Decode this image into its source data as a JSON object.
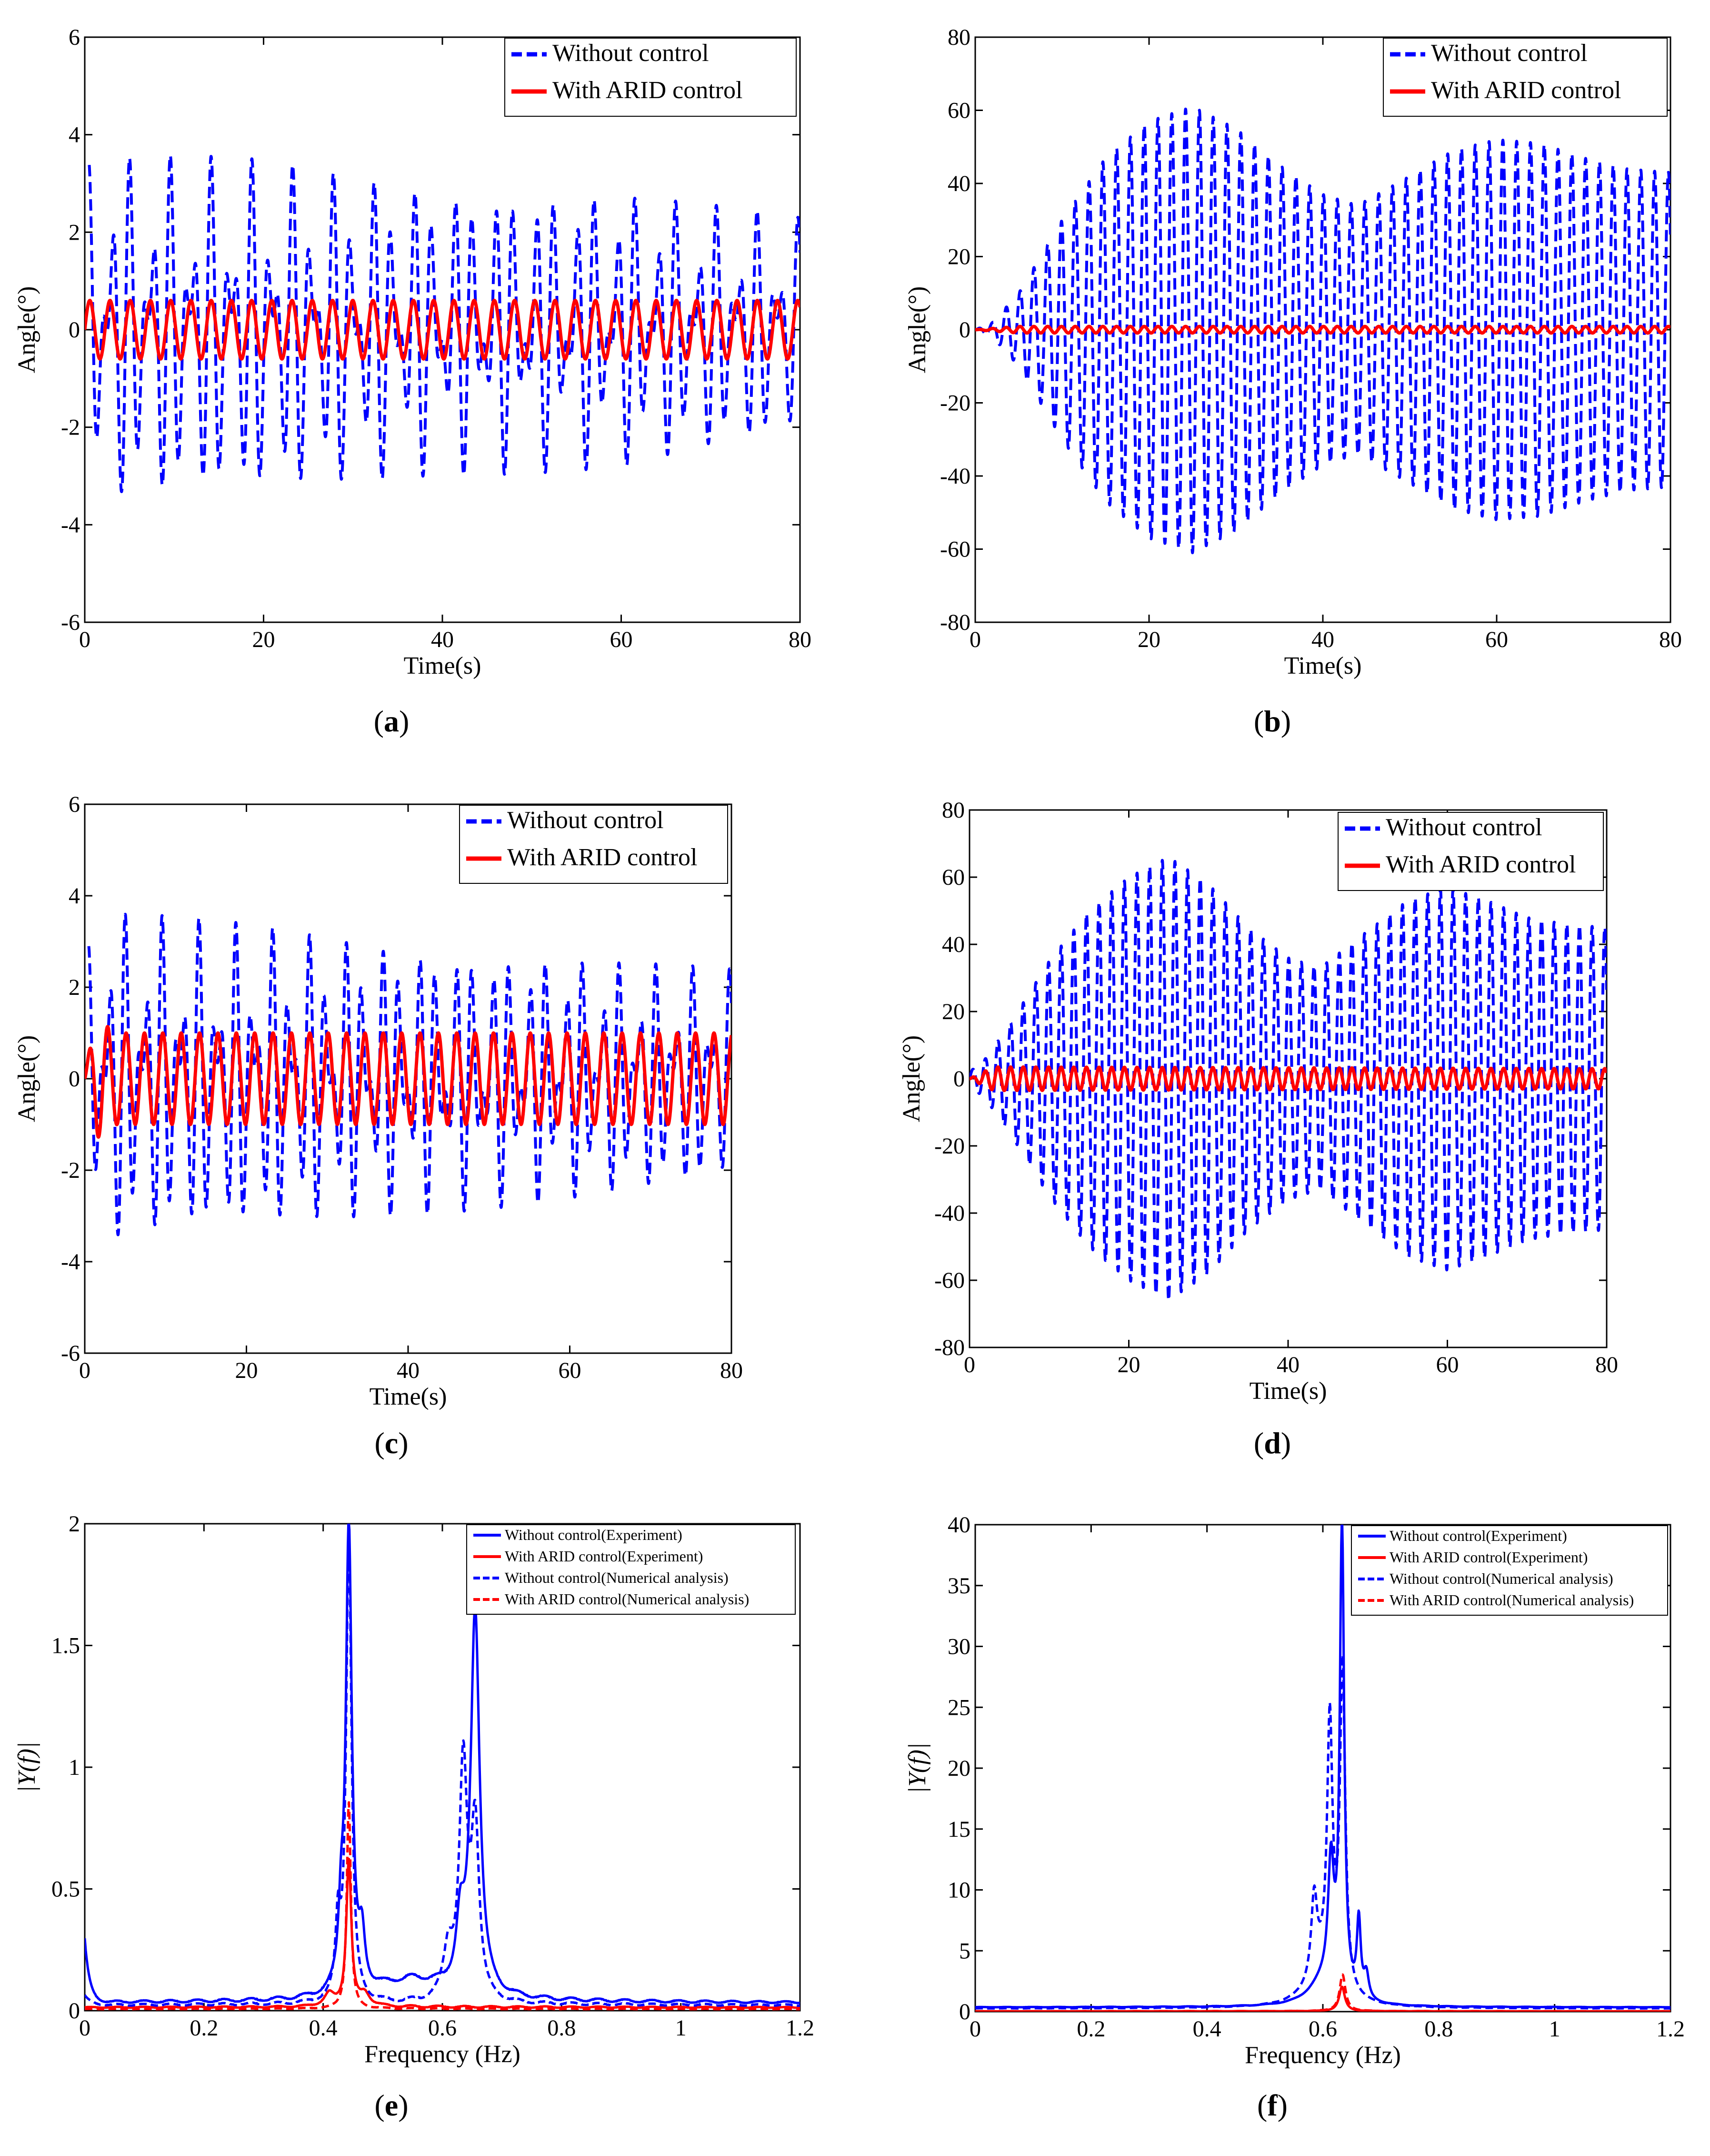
{
  "chart_data": [
    {
      "id": "a",
      "type": "line",
      "caption": "a",
      "xlabel": "Time(s)",
      "ylabel": "Angle(°)",
      "xlim": [
        0,
        80
      ],
      "ylim": [
        -6,
        6
      ],
      "xticks": [
        0,
        20,
        40,
        60,
        80
      ],
      "yticks": [
        -6,
        -4,
        -2,
        0,
        2,
        4,
        6
      ],
      "series": [
        {
          "name": "Without control",
          "color": "#0000ff",
          "style": "dashed",
          "kind": "sum",
          "envelope": [
            [
              0,
              3.6
            ],
            [
              10,
              3.6
            ],
            [
              20,
              3.5
            ],
            [
              40,
              3.0
            ],
            [
              60,
              2.9
            ],
            [
              80,
              2.3
            ]
          ],
          "components": [
            {
              "freq": 0.442,
              "amp": 0.55
            },
            {
              "freq": 0.655,
              "amp": 0.45
            }
          ],
          "start": 0.5,
          "end": 80
        },
        {
          "name": "With ARID control",
          "color": "#ff0000",
          "style": "solid",
          "kind": "sine",
          "envelope": [
            [
              0,
              0.6
            ],
            [
              80,
              0.6
            ]
          ],
          "freq": 0.442,
          "start": 0,
          "end": 80
        }
      ]
    },
    {
      "id": "b",
      "type": "line",
      "caption": "b",
      "xlabel": "Time(s)",
      "ylabel": "Angle(°)",
      "xlim": [
        0,
        80
      ],
      "ylim": [
        -80,
        80
      ],
      "xticks": [
        0,
        20,
        40,
        60,
        80
      ],
      "yticks": [
        -80,
        -60,
        -40,
        -20,
        0,
        20,
        40,
        60,
        80
      ],
      "series": [
        {
          "name": "Without control",
          "color": "#0000ff",
          "style": "dashed",
          "kind": "sine",
          "envelope": [
            [
              0,
              0
            ],
            [
              2,
              2
            ],
            [
              5,
              10
            ],
            [
              10,
              30
            ],
            [
              15,
              47
            ],
            [
              20,
              57
            ],
            [
              25,
              61
            ],
            [
              30,
              55
            ],
            [
              35,
              45
            ],
            [
              40,
              37
            ],
            [
              44,
              34
            ],
            [
              50,
              42
            ],
            [
              55,
              49
            ],
            [
              60,
              52
            ],
            [
              65,
              51
            ],
            [
              70,
              47
            ],
            [
              75,
              44
            ],
            [
              80,
              43
            ]
          ],
          "freq": 0.63,
          "start": 0,
          "end": 80
        },
        {
          "name": "With ARID control",
          "color": "#ff0000",
          "style": "solid",
          "kind": "sine",
          "envelope": [
            [
              0,
              0
            ],
            [
              5,
              0.9
            ],
            [
              80,
              0.9
            ]
          ],
          "freq": 0.63,
          "start": 0,
          "end": 80
        }
      ]
    },
    {
      "id": "c",
      "type": "line",
      "caption": "c",
      "xlabel": "Time(s)",
      "ylabel": "Angle(°)",
      "xlim": [
        0,
        80
      ],
      "ylim": [
        -6,
        6
      ],
      "xticks": [
        0,
        20,
        40,
        60,
        80
      ],
      "yticks": [
        -6,
        -4,
        -2,
        0,
        2,
        4,
        6
      ],
      "series": [
        {
          "name": "Without control",
          "color": "#0000ff",
          "style": "dashed",
          "kind": "sum",
          "envelope": [
            [
              0,
              3.0
            ],
            [
              4,
              3.7
            ],
            [
              20,
              3.4
            ],
            [
              40,
              3.0
            ],
            [
              60,
              2.7
            ],
            [
              80,
              2.4
            ]
          ],
          "components": [
            {
              "freq": 0.442,
              "amp": 0.55
            },
            {
              "freq": 0.655,
              "amp": 0.45
            }
          ],
          "start": 0.5,
          "end": 80
        },
        {
          "name": "With ARID control",
          "color": "#ff0000",
          "style": "solid",
          "kind": "sine",
          "envelope": [
            [
              0,
              0.2
            ],
            [
              1.5,
              1.3
            ],
            [
              4,
              1.0
            ],
            [
              80,
              1.0
            ]
          ],
          "freq": 0.44,
          "start": 0,
          "end": 80
        }
      ]
    },
    {
      "id": "d",
      "type": "line",
      "caption": "d",
      "xlabel": "Time(s)",
      "ylabel": "Angle(°)",
      "xlim": [
        0,
        80
      ],
      "ylim": [
        -80,
        80
      ],
      "xticks": [
        0,
        20,
        40,
        60,
        80
      ],
      "yticks": [
        -80,
        -60,
        -40,
        -20,
        0,
        20,
        40,
        60,
        80
      ],
      "series": [
        {
          "name": "Without control",
          "color": "#0000ff",
          "style": "dashed",
          "kind": "sine",
          "envelope": [
            [
              0,
              2
            ],
            [
              2,
              6
            ],
            [
              5,
              16
            ],
            [
              10,
              35
            ],
            [
              15,
              50
            ],
            [
              20,
              60
            ],
            [
              25,
              66
            ],
            [
              30,
              58
            ],
            [
              35,
              45
            ],
            [
              40,
              36
            ],
            [
              44,
              33
            ],
            [
              50,
              44
            ],
            [
              55,
              53
            ],
            [
              60,
              57
            ],
            [
              65,
              53
            ],
            [
              70,
              48
            ],
            [
              75,
              46
            ],
            [
              80,
              45
            ]
          ],
          "freq": 0.63,
          "start": 0,
          "end": 80
        },
        {
          "name": "With ARID control",
          "color": "#ff0000",
          "style": "solid",
          "kind": "sine",
          "envelope": [
            [
              0,
              0
            ],
            [
              3,
              3.5
            ],
            [
              80,
              3
            ]
          ],
          "freq": 0.63,
          "start": 0,
          "end": 80
        }
      ]
    },
    {
      "id": "e",
      "type": "line",
      "caption": "e",
      "xlabel": "Frequency (Hz)",
      "ylabel": "|Y(f)|",
      "xlim": [
        0,
        1.2
      ],
      "ylim": [
        0,
        2
      ],
      "xticks": [
        0,
        0.2,
        0.4,
        0.6,
        0.8,
        1,
        1.2
      ],
      "yticks": [
        0,
        0.5,
        1,
        1.5,
        2
      ],
      "series": [
        {
          "name": "Without control(Experiment)",
          "color": "#0000ff",
          "style": "solid",
          "kind": "spectrum",
          "base": 0.03,
          "noise": 0.02,
          "decay": [
            0.26,
            0.008
          ],
          "peaks": [
            {
              "f": 0.443,
              "a": 1.92,
              "w": 0.006
            },
            {
              "f": 0.655,
              "a": 1.58,
              "w": 0.009
            },
            {
              "f": 0.43,
              "a": 0.25,
              "w": 0.005
            },
            {
              "f": 0.465,
              "a": 0.2,
              "w": 0.006
            },
            {
              "f": 0.63,
              "a": 0.25,
              "w": 0.008
            },
            {
              "f": 0.55,
              "a": 0.08,
              "w": 0.07
            }
          ]
        },
        {
          "name": "With ARID control(Experiment)",
          "color": "#ff0000",
          "style": "solid",
          "kind": "spectrum",
          "base": 0.012,
          "noise": 0.008,
          "decay": [
            0.0,
            0.01
          ],
          "peaks": [
            {
              "f": 0.443,
              "a": 0.6,
              "w": 0.005
            },
            {
              "f": 0.41,
              "a": 0.05,
              "w": 0.01
            },
            {
              "f": 0.47,
              "a": 0.05,
              "w": 0.01
            }
          ]
        },
        {
          "name": "Without control(Numerical analysis)",
          "color": "#0000ff",
          "style": "dashed",
          "kind": "spectrum",
          "base": 0.02,
          "noise": 0.015,
          "decay": [
            0.04,
            0.01
          ],
          "peaks": [
            {
              "f": 0.443,
              "a": 1.9,
              "w": 0.0055
            },
            {
              "f": 0.635,
              "a": 0.95,
              "w": 0.008
            },
            {
              "f": 0.655,
              "a": 0.7,
              "w": 0.008
            },
            {
              "f": 0.425,
              "a": 0.3,
              "w": 0.005
            },
            {
              "f": 0.61,
              "a": 0.2,
              "w": 0.01
            }
          ]
        },
        {
          "name": "With ARID control(Numerical analysis)",
          "color": "#ff0000",
          "style": "dashed",
          "kind": "spectrum",
          "base": 0.006,
          "noise": 0.004,
          "decay": [
            0.0,
            0.01
          ],
          "peaks": [
            {
              "f": 0.443,
              "a": 0.85,
              "w": 0.004
            }
          ]
        }
      ]
    },
    {
      "id": "f",
      "type": "line",
      "caption": "f",
      "xlabel": "Frequency (Hz)",
      "ylabel": "|Y(f)|",
      "xlim": [
        0,
        1.2
      ],
      "ylim": [
        0,
        40
      ],
      "xticks": [
        0,
        0.2,
        0.4,
        0.6,
        0.8,
        1,
        1.2
      ],
      "yticks": [
        0,
        5,
        10,
        15,
        20,
        25,
        30,
        35,
        40
      ],
      "series": [
        {
          "name": "Without control(Experiment)",
          "color": "#0000ff",
          "style": "solid",
          "kind": "spectrum",
          "base": 0.35,
          "noise": 0.05,
          "decay": [
            0.0,
            0.01
          ],
          "peaks": [
            {
              "f": 0.633,
              "a": 38.8,
              "w": 0.0045
            },
            {
              "f": 0.614,
              "a": 10.0,
              "w": 0.006
            },
            {
              "f": 0.662,
              "a": 6.3,
              "w": 0.004
            },
            {
              "f": 0.675,
              "a": 2.0,
              "w": 0.005
            },
            {
              "f": 0.6,
              "a": 1.8,
              "w": 0.03
            }
          ]
        },
        {
          "name": "With ARID control(Experiment)",
          "color": "#ff0000",
          "style": "solid",
          "kind": "spectrum",
          "base": 0.03,
          "noise": 0.02,
          "decay": [
            0.0,
            0.01
          ],
          "peaks": [
            {
              "f": 0.633,
              "a": 2.0,
              "w": 0.006
            }
          ]
        },
        {
          "name": "Without control(Numerical analysis)",
          "color": "#0000ff",
          "style": "dashed",
          "kind": "spectrum",
          "base": 0.25,
          "noise": 0.04,
          "decay": [
            0.0,
            0.01
          ],
          "peaks": [
            {
              "f": 0.612,
              "a": 20.7,
              "w": 0.0055
            },
            {
              "f": 0.634,
              "a": 26.5,
              "w": 0.0055
            },
            {
              "f": 0.585,
              "a": 6.5,
              "w": 0.006
            },
            {
              "f": 0.6,
              "a": 3.0,
              "w": 0.03
            }
          ]
        },
        {
          "name": "With ARID control(Numerical analysis)",
          "color": "#ff0000",
          "style": "dashed",
          "kind": "spectrum",
          "base": 0.03,
          "noise": 0.02,
          "decay": [
            0.0,
            0.01
          ],
          "peaks": [
            {
              "f": 0.634,
              "a": 3.0,
              "w": 0.006
            }
          ]
        }
      ]
    }
  ]
}
